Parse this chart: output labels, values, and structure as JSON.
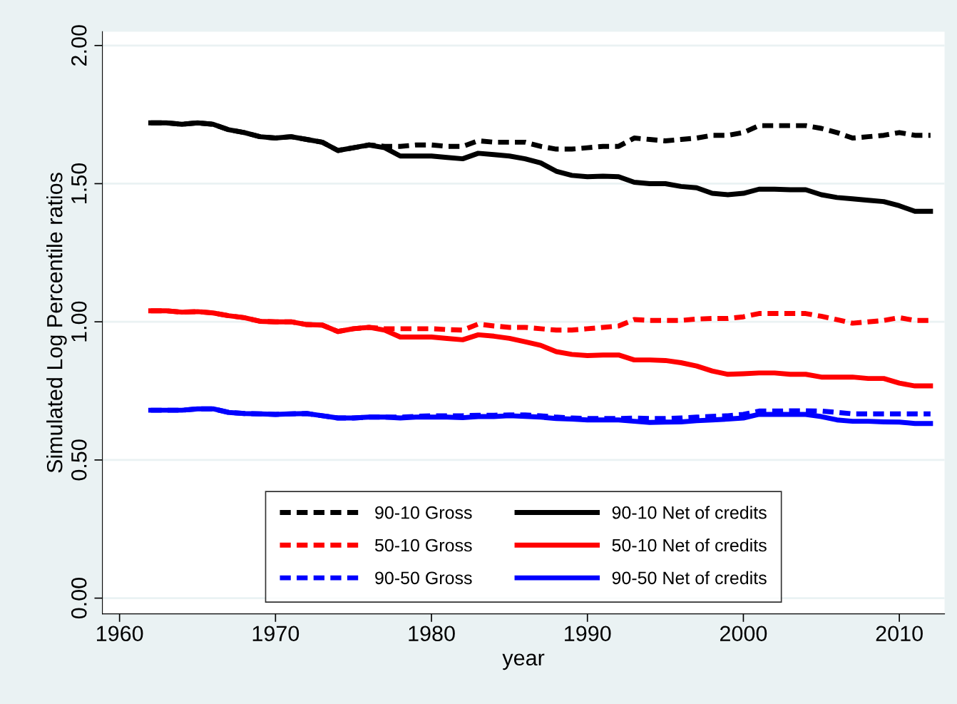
{
  "chart_data": {
    "type": "line",
    "xlabel": "year",
    "ylabel": "Simulated Log Percentile ratios",
    "x": [
      1962,
      1963,
      1964,
      1965,
      1966,
      1967,
      1968,
      1969,
      1970,
      1971,
      1972,
      1973,
      1974,
      1975,
      1976,
      1977,
      1978,
      1979,
      1980,
      1981,
      1982,
      1983,
      1984,
      1985,
      1986,
      1987,
      1988,
      1989,
      1990,
      1991,
      1992,
      1993,
      1994,
      1995,
      1996,
      1997,
      1998,
      1999,
      2000,
      2001,
      2002,
      2003,
      2004,
      2005,
      2006,
      2007,
      2008,
      2009,
      2010,
      2011,
      2012
    ],
    "series": [
      {
        "name": "90-10 Gross",
        "color": "#000000",
        "line_style": "dashed",
        "values": [
          1.72,
          1.72,
          1.715,
          1.72,
          1.715,
          1.695,
          1.685,
          1.67,
          1.665,
          1.67,
          1.66,
          1.65,
          1.62,
          1.63,
          1.64,
          1.635,
          1.635,
          1.64,
          1.64,
          1.635,
          1.635,
          1.655,
          1.65,
          1.65,
          1.65,
          1.635,
          1.625,
          1.625,
          1.63,
          1.635,
          1.635,
          1.665,
          1.66,
          1.655,
          1.66,
          1.665,
          1.675,
          1.675,
          1.685,
          1.71,
          1.71,
          1.71,
          1.71,
          1.7,
          1.685,
          1.665,
          1.67,
          1.675,
          1.685,
          1.675,
          1.675
        ]
      },
      {
        "name": "50-10 Gross",
        "color": "#ff0000",
        "line_style": "dashed",
        "values": [
          1.04,
          1.04,
          1.035,
          1.037,
          1.032,
          1.022,
          1.015,
          1.002,
          1.0,
          1.0,
          0.99,
          0.988,
          0.965,
          0.975,
          0.98,
          0.975,
          0.975,
          0.975,
          0.975,
          0.972,
          0.97,
          0.992,
          0.985,
          0.98,
          0.98,
          0.975,
          0.97,
          0.97,
          0.975,
          0.98,
          0.985,
          1.008,
          1.005,
          1.005,
          1.005,
          1.01,
          1.012,
          1.012,
          1.018,
          1.03,
          1.03,
          1.03,
          1.03,
          1.02,
          1.008,
          0.995,
          1.0,
          1.005,
          1.015,
          1.005,
          1.005
        ]
      },
      {
        "name": "90-50 Gross",
        "color": "#0000ff",
        "line_style": "dashed",
        "values": [
          0.68,
          0.68,
          0.68,
          0.685,
          0.685,
          0.672,
          0.668,
          0.667,
          0.665,
          0.667,
          0.668,
          0.66,
          0.652,
          0.652,
          0.655,
          0.655,
          0.655,
          0.658,
          0.66,
          0.66,
          0.66,
          0.662,
          0.662,
          0.663,
          0.663,
          0.66,
          0.655,
          0.652,
          0.65,
          0.65,
          0.65,
          0.652,
          0.65,
          0.65,
          0.652,
          0.655,
          0.658,
          0.66,
          0.665,
          0.677,
          0.677,
          0.678,
          0.678,
          0.677,
          0.672,
          0.667,
          0.667,
          0.667,
          0.667,
          0.667,
          0.667
        ]
      },
      {
        "name": "90-10 Net of credits",
        "color": "#000000",
        "line_style": "solid",
        "values": [
          1.72,
          1.72,
          1.715,
          1.72,
          1.715,
          1.695,
          1.685,
          1.67,
          1.665,
          1.67,
          1.66,
          1.65,
          1.62,
          1.63,
          1.64,
          1.63,
          1.6,
          1.6,
          1.6,
          1.595,
          1.59,
          1.61,
          1.605,
          1.6,
          1.59,
          1.575,
          1.545,
          1.53,
          1.525,
          1.527,
          1.525,
          1.505,
          1.5,
          1.5,
          1.49,
          1.485,
          1.465,
          1.46,
          1.465,
          1.48,
          1.48,
          1.478,
          1.478,
          1.46,
          1.45,
          1.445,
          1.44,
          1.435,
          1.42,
          1.4,
          1.4
        ]
      },
      {
        "name": "50-10 Net of credits",
        "color": "#ff0000",
        "line_style": "solid",
        "values": [
          1.04,
          1.04,
          1.035,
          1.037,
          1.032,
          1.022,
          1.015,
          1.002,
          1.0,
          1.0,
          0.99,
          0.988,
          0.965,
          0.975,
          0.98,
          0.97,
          0.945,
          0.945,
          0.945,
          0.94,
          0.935,
          0.953,
          0.948,
          0.94,
          0.928,
          0.915,
          0.892,
          0.882,
          0.878,
          0.88,
          0.88,
          0.862,
          0.862,
          0.86,
          0.852,
          0.84,
          0.822,
          0.81,
          0.812,
          0.815,
          0.815,
          0.81,
          0.81,
          0.8,
          0.8,
          0.8,
          0.795,
          0.795,
          0.778,
          0.768,
          0.768
        ]
      },
      {
        "name": "90-50 Net of credits",
        "color": "#0000ff",
        "line_style": "solid",
        "values": [
          0.68,
          0.68,
          0.68,
          0.685,
          0.685,
          0.672,
          0.668,
          0.667,
          0.665,
          0.667,
          0.668,
          0.66,
          0.652,
          0.652,
          0.655,
          0.655,
          0.652,
          0.655,
          0.655,
          0.655,
          0.653,
          0.657,
          0.657,
          0.66,
          0.658,
          0.655,
          0.65,
          0.648,
          0.645,
          0.645,
          0.645,
          0.64,
          0.636,
          0.637,
          0.638,
          0.642,
          0.645,
          0.648,
          0.652,
          0.665,
          0.665,
          0.665,
          0.665,
          0.657,
          0.645,
          0.64,
          0.64,
          0.638,
          0.637,
          0.632,
          0.632
        ]
      }
    ],
    "xlim": [
      1958.9,
      2012.9
    ],
    "xticks": [
      1960,
      1970,
      1980,
      1990,
      2000,
      2010
    ],
    "ylim": [
      -0.057,
      2.05
    ],
    "yticks": [
      {
        "value": 0,
        "label": "0.00"
      },
      {
        "value": 0.5,
        "label": "0.50"
      },
      {
        "value": 1,
        "label": "1.00"
      },
      {
        "value": 1.5,
        "label": "1.50"
      },
      {
        "value": 2,
        "label": "2.00"
      }
    ],
    "grid": "y",
    "legend": "bottom",
    "marker": "none"
  }
}
